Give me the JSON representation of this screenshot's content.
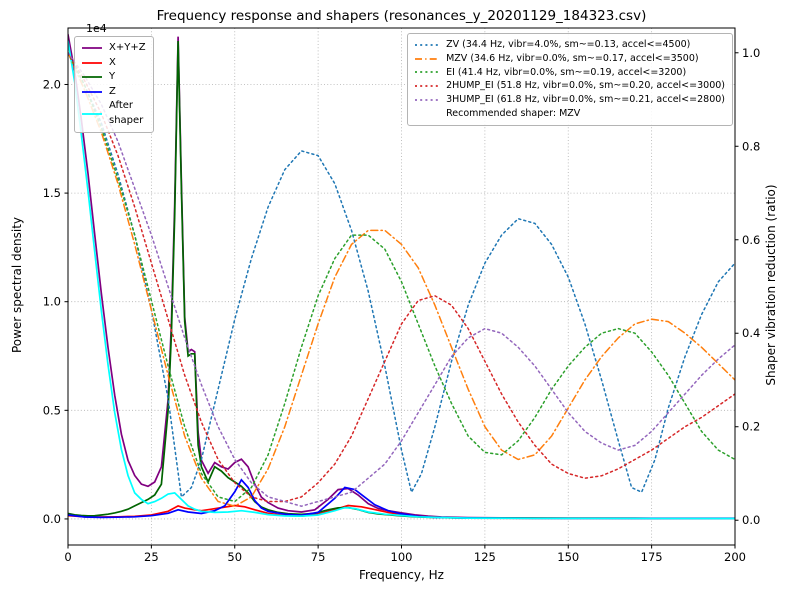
{
  "chart_data": {
    "type": "line",
    "title": "Frequency response and shapers (resonances_y_20201129_184323.csv)",
    "xlabel": "Frequency, Hz",
    "ylabel": "Power spectral density",
    "ylabel_right": "Shaper vibration reduction (ratio)",
    "left_axis_multiplier": "1e4",
    "xlim": [
      0,
      200
    ],
    "ylim_left": [
      0,
      22600
    ],
    "ylim_right": [
      0,
      1.0
    ],
    "grid": true,
    "grid_color": "#b0b0b0",
    "x_ticks": [
      0,
      25,
      50,
      75,
      100,
      125,
      150,
      175,
      200
    ],
    "y_ticks_left": {
      "values": [
        0,
        5000,
        10000,
        15000,
        20000
      ],
      "labels": [
        "0.0",
        "0.5",
        "1.0",
        "1.5",
        "2.0"
      ]
    },
    "y_ticks_right": {
      "values": [
        0,
        0.2,
        0.4,
        0.6,
        0.8,
        1.0
      ],
      "labels": [
        "0.0",
        "0.2",
        "0.4",
        "0.6",
        "0.8",
        "1.0"
      ]
    },
    "psd_series": [
      {
        "name": "sum",
        "label": "X+Y+Z",
        "color": "#800080",
        "linestyle": "solid",
        "axis": "left",
        "x": [
          0,
          2,
          4,
          6,
          8,
          10,
          12,
          14,
          16,
          18,
          20,
          22,
          24,
          26,
          28,
          30,
          31,
          32,
          33,
          34,
          35,
          36,
          37,
          38,
          39,
          40,
          42,
          44,
          46,
          48,
          50,
          52,
          54,
          56,
          58,
          60,
          63,
          66,
          70,
          74,
          78,
          81,
          84,
          87,
          90,
          93,
          96,
          100,
          104,
          108,
          112,
          120,
          130,
          150,
          175,
          200
        ],
        "y": [
          22300,
          20600,
          18400,
          15900,
          13100,
          10400,
          7900,
          5700,
          3900,
          2700,
          2000,
          1600,
          1500,
          1700,
          2400,
          5500,
          9000,
          14500,
          22200,
          15500,
          9300,
          7700,
          7800,
          7700,
          4000,
          2700,
          2100,
          2600,
          2400,
          2300,
          2600,
          2750,
          2400,
          1600,
          1000,
          750,
          500,
          380,
          320,
          420,
          900,
          1350,
          1400,
          1100,
          700,
          480,
          380,
          280,
          190,
          130,
          90,
          60,
          50,
          40,
          35,
          35
        ]
      },
      {
        "name": "x",
        "label": "X",
        "color": "#ff0000",
        "linestyle": "solid",
        "axis": "left",
        "x": [
          0,
          5,
          10,
          15,
          20,
          25,
          30,
          33,
          35,
          38,
          40,
          43,
          46,
          50,
          53,
          56,
          60,
          65,
          70,
          75,
          80,
          84,
          88,
          92,
          96,
          100,
          105,
          110,
          120,
          140,
          200
        ],
        "y": [
          150,
          100,
          90,
          100,
          120,
          180,
          350,
          600,
          500,
          420,
          380,
          450,
          520,
          620,
          560,
          420,
          260,
          160,
          130,
          220,
          430,
          620,
          560,
          430,
          300,
          200,
          120,
          80,
          40,
          25,
          20
        ]
      },
      {
        "name": "y",
        "label": "Y",
        "color": "#006400",
        "linestyle": "solid",
        "axis": "left",
        "x": [
          0,
          2,
          4,
          6,
          8,
          10,
          12,
          14,
          16,
          18,
          20,
          22,
          24,
          26,
          28,
          30,
          31,
          32,
          33,
          34,
          35,
          36,
          37,
          38,
          39,
          40,
          42,
          44,
          46,
          48,
          50,
          52,
          54,
          56,
          58,
          60,
          63,
          66,
          70,
          74,
          78,
          81,
          84,
          87,
          90,
          93,
          96,
          100,
          104,
          108,
          112,
          120,
          130,
          150,
          175,
          200
        ],
        "y": [
          250,
          190,
          160,
          140,
          150,
          180,
          220,
          280,
          350,
          450,
          600,
          750,
          900,
          1100,
          1600,
          5000,
          8500,
          14000,
          22000,
          15200,
          9100,
          7500,
          7600,
          7600,
          3400,
          2400,
          1700,
          2400,
          2200,
          1900,
          1700,
          1500,
          1200,
          800,
          550,
          420,
          300,
          240,
          210,
          260,
          420,
          510,
          520,
          430,
          300,
          230,
          190,
          140,
          100,
          75,
          60,
          45,
          40,
          35,
          30,
          30
        ]
      },
      {
        "name": "z",
        "label": "Z",
        "color": "#0000ff",
        "linestyle": "solid",
        "axis": "left",
        "x": [
          0,
          5,
          10,
          15,
          20,
          25,
          30,
          33,
          36,
          40,
          44,
          47,
          50,
          52,
          54,
          56,
          58,
          60,
          65,
          70,
          75,
          80,
          83,
          86,
          89,
          92,
          96,
          100,
          105,
          110,
          120,
          140,
          200
        ],
        "y": [
          180,
          90,
          70,
          80,
          100,
          150,
          260,
          420,
          320,
          250,
          380,
          600,
          1250,
          1800,
          1450,
          850,
          500,
          350,
          220,
          170,
          300,
          950,
          1450,
          1350,
          1000,
          650,
          380,
          230,
          120,
          70,
          45,
          30,
          25
        ]
      },
      {
        "name": "after_shaper",
        "label": "After\nshaper",
        "color": "#00ffff",
        "linestyle": "solid",
        "axis": "left",
        "x": [
          0,
          2,
          4,
          6,
          8,
          10,
          12,
          14,
          16,
          18,
          20,
          22,
          24,
          26,
          28,
          30,
          32,
          34,
          36,
          38,
          40,
          44,
          48,
          52,
          56,
          60,
          65,
          70,
          75,
          80,
          83,
          86,
          90,
          95,
          100,
          105,
          110,
          120,
          140,
          200
        ],
        "y": [
          22000,
          20100,
          17700,
          15100,
          12300,
          9600,
          7100,
          4900,
          3200,
          2000,
          1200,
          900,
          700,
          800,
          950,
          1150,
          1200,
          900,
          600,
          450,
          350,
          300,
          320,
          380,
          300,
          200,
          140,
          130,
          180,
          380,
          520,
          480,
          320,
          220,
          160,
          100,
          70,
          40,
          25,
          20
        ]
      }
    ],
    "shaper_series": [
      {
        "name": "ZV",
        "label": "ZV (34.4 Hz, vibr=4.0%, sm~=0.13, accel<=4500)",
        "color": "#1f77b4",
        "linestyle": "dotted",
        "axis": "right",
        "x": [
          0,
          5,
          10,
          15,
          20,
          25,
          30,
          34,
          37,
          40,
          45,
          50,
          55,
          60,
          65,
          70,
          75,
          80,
          85,
          90,
          95,
          100,
          103,
          106,
          110,
          115,
          120,
          125,
          130,
          135,
          140,
          145,
          150,
          155,
          160,
          165,
          169,
          172,
          176,
          180,
          185,
          190,
          195,
          200
        ],
        "y": [
          1.0,
          0.93,
          0.85,
          0.74,
          0.61,
          0.45,
          0.26,
          0.05,
          0.07,
          0.13,
          0.28,
          0.43,
          0.56,
          0.67,
          0.75,
          0.79,
          0.78,
          0.72,
          0.62,
          0.49,
          0.33,
          0.15,
          0.06,
          0.1,
          0.2,
          0.34,
          0.46,
          0.55,
          0.61,
          0.645,
          0.635,
          0.59,
          0.52,
          0.42,
          0.3,
          0.17,
          0.07,
          0.06,
          0.13,
          0.24,
          0.35,
          0.44,
          0.51,
          0.55
        ]
      },
      {
        "name": "MZV",
        "label": "MZV (34.6 Hz, vibr=0.0%, sm~=0.17, accel<=3500)",
        "color": "#ff7f0e",
        "linestyle": "dashdot",
        "axis": "right",
        "x": [
          0,
          5,
          10,
          15,
          20,
          25,
          30,
          35,
          40,
          45,
          50,
          55,
          60,
          65,
          70,
          75,
          80,
          85,
          90,
          95,
          100,
          105,
          110,
          115,
          120,
          125,
          130,
          135,
          140,
          145,
          150,
          155,
          160,
          165,
          170,
          175,
          180,
          185,
          190,
          195,
          200
        ],
        "y": [
          1.0,
          0.92,
          0.83,
          0.72,
          0.59,
          0.45,
          0.31,
          0.18,
          0.09,
          0.04,
          0.03,
          0.05,
          0.11,
          0.2,
          0.31,
          0.42,
          0.52,
          0.59,
          0.62,
          0.62,
          0.59,
          0.54,
          0.46,
          0.37,
          0.28,
          0.2,
          0.15,
          0.13,
          0.14,
          0.18,
          0.24,
          0.3,
          0.35,
          0.39,
          0.42,
          0.43,
          0.425,
          0.4,
          0.37,
          0.335,
          0.3
        ]
      },
      {
        "name": "EI",
        "label": "EI (41.4 Hz, vibr=0.0%, sm~=0.19, accel<=3200)",
        "color": "#2ca02c",
        "linestyle": "dotted",
        "axis": "right",
        "x": [
          0,
          5,
          10,
          15,
          20,
          25,
          30,
          35,
          40,
          45,
          50,
          55,
          60,
          65,
          70,
          75,
          80,
          85,
          90,
          95,
          100,
          105,
          110,
          115,
          120,
          125,
          130,
          135,
          140,
          145,
          150,
          155,
          160,
          165,
          170,
          175,
          180,
          185,
          190,
          195,
          200
        ],
        "y": [
          1.0,
          0.93,
          0.84,
          0.73,
          0.61,
          0.47,
          0.33,
          0.2,
          0.1,
          0.05,
          0.04,
          0.07,
          0.14,
          0.25,
          0.37,
          0.48,
          0.56,
          0.61,
          0.61,
          0.58,
          0.51,
          0.42,
          0.33,
          0.25,
          0.18,
          0.145,
          0.14,
          0.17,
          0.22,
          0.28,
          0.33,
          0.37,
          0.4,
          0.41,
          0.4,
          0.36,
          0.31,
          0.25,
          0.19,
          0.15,
          0.13
        ]
      },
      {
        "name": "2HUMP_EI",
        "label": "2HUMP_EI (51.8 Hz, vibr=0.0%, sm~=0.20, accel<=3000)",
        "color": "#d62728",
        "linestyle": "dotted",
        "axis": "right",
        "x": [
          0,
          5,
          10,
          15,
          20,
          25,
          30,
          35,
          40,
          45,
          50,
          55,
          60,
          65,
          70,
          75,
          80,
          85,
          90,
          95,
          100,
          105,
          110,
          115,
          120,
          125,
          130,
          135,
          140,
          145,
          150,
          155,
          160,
          165,
          170,
          175,
          180,
          185,
          190,
          195,
          200
        ],
        "y": [
          1.0,
          0.94,
          0.87,
          0.78,
          0.67,
          0.55,
          0.43,
          0.31,
          0.21,
          0.13,
          0.08,
          0.05,
          0.04,
          0.04,
          0.05,
          0.08,
          0.12,
          0.18,
          0.26,
          0.34,
          0.42,
          0.47,
          0.48,
          0.46,
          0.41,
          0.34,
          0.27,
          0.21,
          0.16,
          0.12,
          0.1,
          0.09,
          0.095,
          0.11,
          0.13,
          0.15,
          0.175,
          0.2,
          0.22,
          0.245,
          0.27
        ]
      },
      {
        "name": "3HUMP_EI",
        "label": "3HUMP_EI (61.8 Hz, vibr=0.0%, sm~=0.21, accel<=2800)",
        "color": "#9467bd",
        "linestyle": "dotted",
        "axis": "right",
        "x": [
          0,
          5,
          10,
          15,
          20,
          25,
          30,
          35,
          40,
          45,
          50,
          55,
          60,
          65,
          70,
          75,
          80,
          85,
          90,
          95,
          100,
          105,
          110,
          115,
          120,
          125,
          130,
          135,
          140,
          145,
          150,
          155,
          160,
          165,
          170,
          175,
          180,
          185,
          190,
          195,
          200
        ],
        "y": [
          1.0,
          0.95,
          0.89,
          0.81,
          0.71,
          0.61,
          0.5,
          0.39,
          0.29,
          0.2,
          0.13,
          0.08,
          0.05,
          0.04,
          0.03,
          0.04,
          0.05,
          0.06,
          0.09,
          0.12,
          0.17,
          0.23,
          0.29,
          0.35,
          0.39,
          0.41,
          0.4,
          0.37,
          0.33,
          0.28,
          0.23,
          0.19,
          0.165,
          0.15,
          0.16,
          0.19,
          0.23,
          0.27,
          0.31,
          0.345,
          0.375
        ]
      }
    ],
    "recommended_note": "Recommended shaper: MZV"
  }
}
